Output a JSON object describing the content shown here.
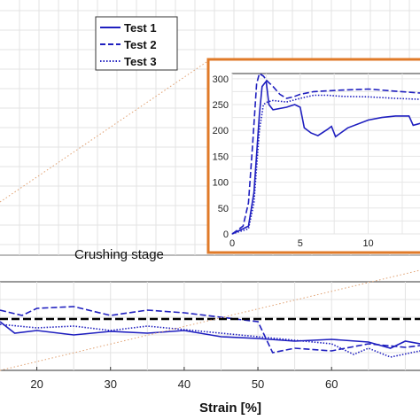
{
  "chart_data": [
    {
      "type": "line",
      "role": "main",
      "xlabel": "Strain [%]",
      "xlim": [
        15,
        72
      ],
      "x_ticks": [
        "20",
        "30",
        "40",
        "50",
        "60"
      ],
      "grid": true,
      "annotation": "Crushing stage",
      "legend": {
        "placement": "top-center"
      },
      "series": [
        {
          "name": "Test 1",
          "style": "solid",
          "color": "#1f1fbf",
          "x": [
            15,
            17,
            20,
            25,
            30,
            35,
            40,
            45,
            50,
            55,
            60,
            65,
            68,
            70,
            72
          ],
          "y": [
            0.55,
            0.42,
            0.45,
            0.4,
            0.44,
            0.42,
            0.45,
            0.38,
            0.36,
            0.33,
            0.35,
            0.32,
            0.25,
            0.33,
            0.3
          ]
        },
        {
          "name": "Test 2",
          "style": "dashed",
          "color": "#1f1fbf",
          "x": [
            15,
            18,
            20,
            25,
            30,
            35,
            40,
            45,
            50,
            52,
            55,
            60,
            65,
            70,
            72
          ],
          "y": [
            0.68,
            0.62,
            0.7,
            0.72,
            0.62,
            0.68,
            0.65,
            0.6,
            0.55,
            0.2,
            0.25,
            0.22,
            0.3,
            0.26,
            0.28
          ]
        },
        {
          "name": "Test 3",
          "style": "dotted",
          "color": "#1f1fbf",
          "x": [
            15,
            20,
            25,
            30,
            35,
            40,
            45,
            50,
            55,
            60,
            63,
            65,
            68,
            72
          ],
          "y": [
            0.52,
            0.48,
            0.5,
            0.45,
            0.5,
            0.46,
            0.42,
            0.38,
            0.34,
            0.3,
            0.18,
            0.25,
            0.15,
            0.22
          ]
        },
        {
          "name": "",
          "style": "dashed-thick",
          "color": "#000000",
          "x": [
            15,
            72
          ],
          "y": [
            0.58,
            0.58
          ]
        }
      ]
    },
    {
      "type": "line",
      "role": "inset",
      "xlim": [
        0,
        14
      ],
      "ylim": [
        0,
        310
      ],
      "x_ticks": [
        "0",
        "5",
        "10"
      ],
      "y_ticks": [
        "0",
        "50",
        "100",
        "150",
        "200",
        "250",
        "300"
      ],
      "grid": true,
      "border_color": "#e07a28",
      "series": [
        {
          "name": "Test 1",
          "style": "solid",
          "color": "#1f1fbf",
          "x": [
            0,
            1.2,
            1.6,
            2.0,
            2.2,
            2.5,
            2.7,
            3.0,
            4.0,
            4.6,
            5.0,
            5.3,
            5.8,
            6.3,
            7.0,
            7.3,
            7.6,
            8.5,
            10.0,
            11.0,
            12.0,
            13.0,
            13.3,
            13.6,
            14.0
          ],
          "y": [
            0,
            15,
            80,
            230,
            285,
            295,
            250,
            240,
            245,
            250,
            245,
            205,
            195,
            190,
            202,
            208,
            188,
            205,
            220,
            225,
            228,
            228,
            210,
            212,
            215
          ]
        },
        {
          "name": "Test 2",
          "style": "dashed",
          "color": "#1f1fbf",
          "x": [
            0,
            0.8,
            1.2,
            1.5,
            1.8,
            2.0,
            2.3,
            2.6,
            3.0,
            3.5,
            4.0,
            4.5,
            5.0,
            6.0,
            8.0,
            10.0,
            12.0,
            14.0
          ],
          "y": [
            0,
            15,
            60,
            170,
            290,
            310,
            305,
            295,
            285,
            270,
            262,
            265,
            270,
            275,
            278,
            280,
            276,
            272
          ]
        },
        {
          "name": "Test 3",
          "style": "dotted",
          "color": "#1f1fbf",
          "x": [
            0,
            1.2,
            1.6,
            2.0,
            2.3,
            2.6,
            3.0,
            4.0,
            5.0,
            6.0,
            7.0,
            8.0,
            10.0,
            12.0,
            14.0
          ],
          "y": [
            0,
            10,
            60,
            200,
            250,
            255,
            258,
            255,
            262,
            268,
            268,
            266,
            265,
            262,
            260
          ]
        }
      ]
    }
  ]
}
